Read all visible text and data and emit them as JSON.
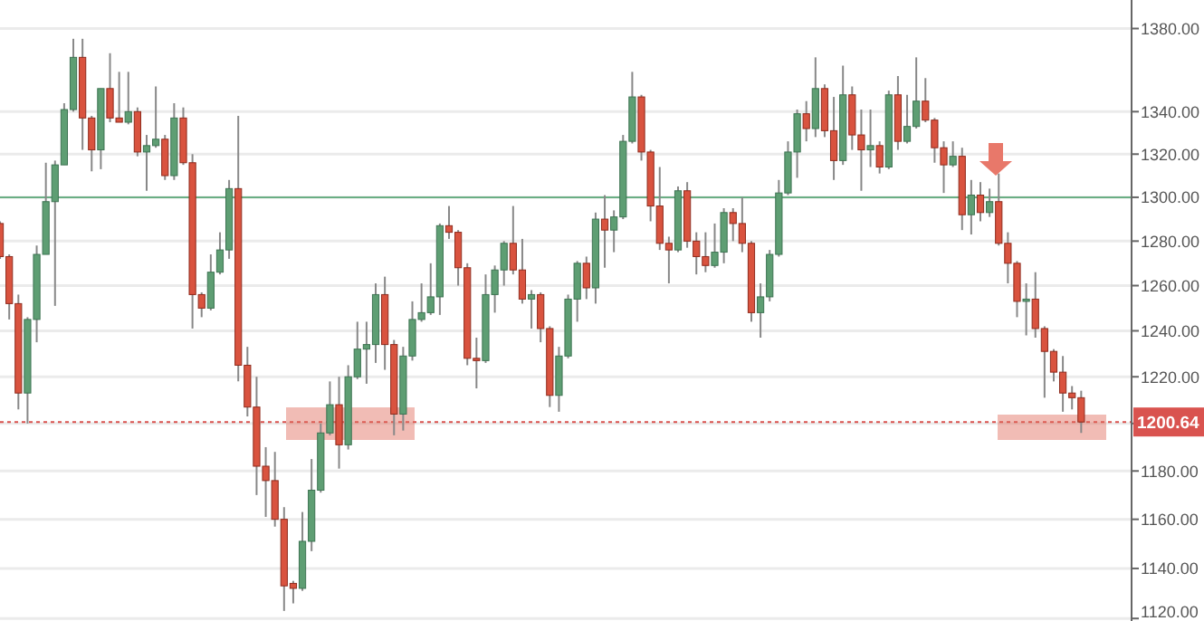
{
  "chart_data": {
    "type": "candlestick",
    "log": "y",
    "grid": "y",
    "tick_labels": "y",
    "categories": [
      null,
      null,
      null,
      null,
      null,
      null,
      null,
      null,
      null,
      null,
      null,
      null,
      null,
      null,
      null,
      null,
      null,
      null,
      null,
      null,
      null,
      null,
      null,
      null,
      null,
      null,
      null,
      null,
      null,
      null,
      null,
      null,
      null,
      null,
      null,
      null,
      null,
      null,
      null,
      null,
      null,
      null,
      null,
      null,
      null,
      null,
      null,
      null,
      null,
      null,
      null,
      null,
      null,
      null,
      null,
      null,
      null,
      null,
      null,
      null,
      null,
      null,
      null,
      null,
      null,
      null,
      null,
      null,
      null,
      null,
      null,
      null,
      null,
      null,
      null,
      null,
      null,
      null,
      null,
      null,
      null,
      null,
      null,
      null,
      null,
      null,
      null,
      null,
      null,
      null,
      null,
      null,
      null,
      null,
      null,
      null,
      null,
      null,
      null,
      null,
      null,
      null,
      null,
      null,
      null,
      null,
      null,
      null,
      null,
      null,
      null,
      null,
      null,
      null,
      null,
      null,
      null,
      null,
      null
    ],
    "ohlc": [
      [
        1288,
        1289,
        1272,
        1273
      ],
      [
        1273,
        1274,
        1245,
        1252
      ],
      [
        1252,
        1256,
        1206,
        1213
      ],
      [
        1213,
        1246,
        1200,
        1245
      ],
      [
        1245,
        1278,
        1235,
        1274
      ],
      [
        1274,
        1316,
        1274,
        1298
      ],
      [
        1298,
        1317,
        1251,
        1315
      ],
      [
        1315,
        1344,
        1315,
        1341
      ],
      [
        1341,
        1375,
        1340,
        1366
      ],
      [
        1366,
        1375,
        1322,
        1337
      ],
      [
        1337,
        1338,
        1312,
        1322
      ],
      [
        1322,
        1351,
        1313,
        1351
      ],
      [
        1351,
        1368,
        1335,
        1337
      ],
      [
        1337,
        1359,
        1335,
        1335
      ],
      [
        1335,
        1359,
        1334,
        1340
      ],
      [
        1340,
        1342,
        1319,
        1321
      ],
      [
        1321,
        1329,
        1303,
        1324
      ],
      [
        1324,
        1352,
        1323,
        1327
      ],
      [
        1327,
        1329,
        1308,
        1310
      ],
      [
        1310,
        1344,
        1308,
        1337
      ],
      [
        1337,
        1342,
        1315,
        1316
      ],
      [
        1316,
        1320,
        1241,
        1256
      ],
      [
        1256,
        1257,
        1246,
        1250
      ],
      [
        1250,
        1274,
        1249,
        1266
      ],
      [
        1266,
        1284,
        1265,
        1276
      ],
      [
        1276,
        1308,
        1272,
        1304
      ],
      [
        1304,
        1338,
        1218,
        1225
      ],
      [
        1225,
        1233,
        1203,
        1207
      ],
      [
        1207,
        1220,
        1170,
        1182
      ],
      [
        1182,
        1190,
        1161,
        1176
      ],
      [
        1176,
        1188,
        1157,
        1160
      ],
      [
        1160,
        1165,
        1123,
        1133
      ],
      [
        1134,
        1135,
        1126,
        1132
      ],
      [
        1132,
        1163,
        1131,
        1151
      ],
      [
        1151,
        1185,
        1147,
        1172
      ],
      [
        1172,
        1200,
        1171,
        1196
      ],
      [
        1196,
        1218,
        1195,
        1208
      ],
      [
        1208,
        1220,
        1181,
        1191
      ],
      [
        1191,
        1225,
        1189,
        1220
      ],
      [
        1220,
        1244,
        1219,
        1232
      ],
      [
        1232,
        1244,
        1217,
        1234
      ],
      [
        1234,
        1261,
        1226,
        1256
      ],
      [
        1256,
        1264,
        1223,
        1234
      ],
      [
        1234,
        1236,
        1195,
        1204
      ],
      [
        1204,
        1233,
        1197,
        1229
      ],
      [
        1229,
        1253,
        1227,
        1245
      ],
      [
        1245,
        1261,
        1244,
        1248
      ],
      [
        1248,
        1270,
        1247,
        1255
      ],
      [
        1255,
        1288,
        1247,
        1287
      ],
      [
        1287,
        1296,
        1281,
        1284
      ],
      [
        1284,
        1285,
        1260,
        1268
      ],
      [
        1268,
        1270,
        1225,
        1228
      ],
      [
        1228,
        1237,
        1215,
        1227
      ],
      [
        1227,
        1265,
        1226,
        1256
      ],
      [
        1256,
        1269,
        1248,
        1267
      ],
      [
        1267,
        1280,
        1260,
        1279
      ],
      [
        1279,
        1296,
        1265,
        1267
      ],
      [
        1267,
        1281,
        1252,
        1254
      ],
      [
        1254,
        1258,
        1241,
        1256
      ],
      [
        1256,
        1257,
        1235,
        1241
      ],
      [
        1241,
        1242,
        1207,
        1212
      ],
      [
        1212,
        1233,
        1205,
        1229
      ],
      [
        1229,
        1256,
        1228,
        1254
      ],
      [
        1254,
        1271,
        1244,
        1270
      ],
      [
        1270,
        1273,
        1254,
        1259
      ],
      [
        1259,
        1293,
        1252,
        1290
      ],
      [
        1290,
        1301,
        1268,
        1285
      ],
      [
        1285,
        1294,
        1275,
        1291
      ],
      [
        1291,
        1329,
        1290,
        1326
      ],
      [
        1326,
        1359,
        1325,
        1347
      ],
      [
        1347,
        1348,
        1317,
        1321
      ],
      [
        1321,
        1322,
        1289,
        1296
      ],
      [
        1296,
        1314,
        1276,
        1279
      ],
      [
        1279,
        1282,
        1261,
        1276
      ],
      [
        1276,
        1305,
        1275,
        1303
      ],
      [
        1303,
        1307,
        1277,
        1280
      ],
      [
        1280,
        1284,
        1265,
        1273
      ],
      [
        1273,
        1284,
        1266,
        1269
      ],
      [
        1269,
        1288,
        1268,
        1275
      ],
      [
        1275,
        1295,
        1270,
        1293
      ],
      [
        1293,
        1295,
        1280,
        1288
      ],
      [
        1288,
        1300,
        1275,
        1279
      ],
      [
        1279,
        1280,
        1244,
        1248
      ],
      [
        1248,
        1261,
        1237,
        1255
      ],
      [
        1255,
        1276,
        1253,
        1274
      ],
      [
        1274,
        1308,
        1273,
        1302
      ],
      [
        1302,
        1326,
        1301,
        1321
      ],
      [
        1321,
        1341,
        1309,
        1339
      ],
      [
        1339,
        1345,
        1326,
        1332
      ],
      [
        1332,
        1366,
        1328,
        1351
      ],
      [
        1351,
        1353,
        1328,
        1331
      ],
      [
        1331,
        1347,
        1308,
        1317
      ],
      [
        1317,
        1362,
        1315,
        1348
      ],
      [
        1348,
        1352,
        1322,
        1329
      ],
      [
        1329,
        1341,
        1303,
        1322
      ],
      [
        1322,
        1341,
        1314,
        1324
      ],
      [
        1324,
        1326,
        1311,
        1314
      ],
      [
        1314,
        1350,
        1313,
        1348
      ],
      [
        1348,
        1357,
        1322,
        1326
      ],
      [
        1326,
        1348,
        1325,
        1333
      ],
      [
        1333,
        1366,
        1332,
        1345
      ],
      [
        1345,
        1356,
        1335,
        1336
      ],
      [
        1336,
        1337,
        1316,
        1323
      ],
      [
        1323,
        1326,
        1302,
        1315
      ],
      [
        1315,
        1326,
        1314,
        1319
      ],
      [
        1319,
        1323,
        1285,
        1292
      ],
      [
        1292,
        1308,
        1283,
        1301
      ],
      [
        1301,
        1307,
        1289,
        1293
      ],
      [
        1293,
        1304,
        1291,
        1298
      ],
      [
        1298,
        1311,
        1278,
        1279
      ],
      [
        1279,
        1284,
        1261,
        1270
      ],
      [
        1270,
        1271,
        1246,
        1253
      ],
      [
        1253,
        1261,
        1238,
        1254
      ],
      [
        1254,
        1266,
        1237,
        1241
      ],
      [
        1241,
        1242,
        1211,
        1231
      ],
      [
        1231,
        1232,
        1218,
        1222
      ],
      [
        1222,
        1229,
        1205,
        1213
      ],
      [
        1213,
        1216,
        1206,
        1211
      ],
      [
        1211,
        1214,
        1196,
        1200.64
      ]
    ],
    "ylim": [
      1119,
      1394
    ],
    "yticks": [
      {
        "value": 1120,
        "label": "1120.00"
      },
      {
        "value": 1140,
        "label": "1140.00"
      },
      {
        "value": 1160,
        "label": "1160.00"
      },
      {
        "value": 1180,
        "label": "1180.00"
      },
      {
        "value": 1200,
        "label": null
      },
      {
        "value": 1220,
        "label": "1220.00"
      },
      {
        "value": 1240,
        "label": "1240.00"
      },
      {
        "value": 1260,
        "label": "1260.00"
      },
      {
        "value": 1280,
        "label": "1280.00"
      },
      {
        "value": 1300,
        "label": "1300.00"
      },
      {
        "value": 1320,
        "label": "1320.00"
      },
      {
        "value": 1340,
        "label": "1340.00"
      },
      {
        "value": 1380,
        "label": "1380.00"
      }
    ],
    "ref_lines": [
      {
        "axis": "y",
        "value": 1300,
        "color": "#6aae84",
        "line_style": "solid"
      },
      {
        "axis": "y",
        "value": 1200.64,
        "label": "1200.64",
        "color": "#d9534f",
        "line_style": "dotted"
      }
    ]
  }
}
